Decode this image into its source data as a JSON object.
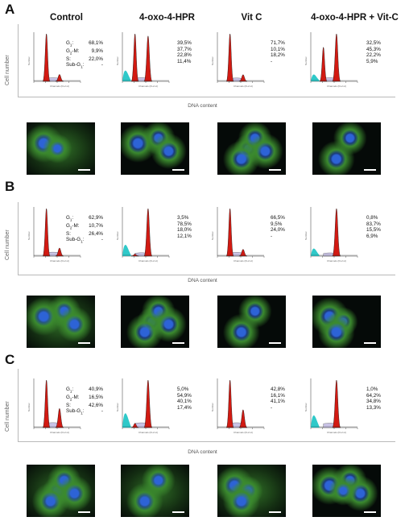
{
  "column_headers": [
    "Control",
    "4-oxo-4-HPR",
    "Vit C",
    "4-oxo-4-HPR + Vit-C"
  ],
  "y_axis_label": "Cell number",
  "x_axis_label": "DNA content",
  "mini_y_label": "Number",
  "mini_x_label": "Channels (FL2-H)",
  "stat_labels": {
    "g1": "G",
    "g1_sub": "1",
    "g2m": "G",
    "g2m_sub": "2",
    "g2m_rest": "-M:",
    "s": "S:",
    "subg1": "Sub-G",
    "subg1_sub": "1",
    "colon": ":"
  },
  "panels": [
    {
      "letter": "A",
      "stats": [
        {
          "g1": "68,1%",
          "g2m": "9,9%",
          "s": "22,0%",
          "subg1": "-"
        },
        {
          "g1": "39,5%",
          "g2m": "37,7%",
          "s": "22,8%",
          "subg1": "11,4%"
        },
        {
          "g1": "71,7%",
          "g2m": "10,1%",
          "s": "18,2%",
          "subg1": "-"
        },
        {
          "g1": "32,5%",
          "g2m": "45,3%",
          "s": "22,2%",
          "subg1": "5,9%"
        }
      ]
    },
    {
      "letter": "B",
      "stats": [
        {
          "g1": "62,9%",
          "g2m": "10,7%",
          "s": "26,4%",
          "subg1": "-"
        },
        {
          "g1": "3,5%",
          "g2m": "78,5%",
          "s": "18,0%",
          "subg1": "12,1%"
        },
        {
          "g1": "66,5%",
          "g2m": "9,5%",
          "s": "24,0%",
          "subg1": "-"
        },
        {
          "g1": "0,8%",
          "g2m": "83,7%",
          "s": "15,5%",
          "subg1": "6,9%"
        }
      ]
    },
    {
      "letter": "C",
      "stats": [
        {
          "g1": "40,9%",
          "g2m": "16,5%",
          "s": "42,6%",
          "subg1": "-"
        },
        {
          "g1": "5,0%",
          "g2m": "54,9%",
          "s": "40,1%",
          "subg1": "17,4%"
        },
        {
          "g1": "42,8%",
          "g2m": "16,1%",
          "s": "41,1%",
          "subg1": "-"
        },
        {
          "g1": "1,0%",
          "g2m": "64,2%",
          "s": "34,8%",
          "subg1": "13,3%"
        }
      ]
    }
  ],
  "colors": {
    "g1_peak": "#d21a12",
    "s_phase": "#c9c3e6",
    "subg1": "#2fc9c9",
    "nuclei": "#2d63d6",
    "cytoplasm": "#3b8a2e",
    "background_micro": "#050a08"
  }
}
